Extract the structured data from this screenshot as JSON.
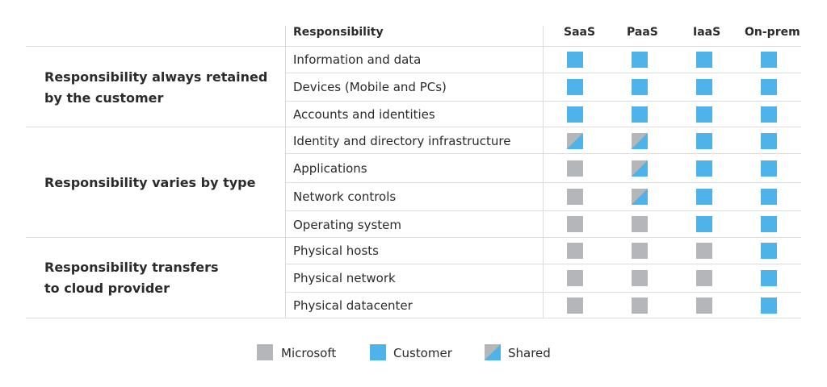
{
  "header": {
    "responsibility": "Responsibility",
    "columns": [
      "SaaS",
      "PaaS",
      "IaaS",
      "On-prem"
    ]
  },
  "groups": [
    {
      "label_lines": [
        "Responsibility always retained",
        "by the customer"
      ]
    },
    {
      "label_lines": [
        "Responsibility varies by type"
      ]
    },
    {
      "label_lines": [
        "Responsibility transfers",
        "to cloud provider"
      ]
    }
  ],
  "rows": [
    {
      "label": "Information and data",
      "cells": [
        "customer",
        "customer",
        "customer",
        "customer"
      ]
    },
    {
      "label": "Devices (Mobile and PCs)",
      "cells": [
        "customer",
        "customer",
        "customer",
        "customer"
      ]
    },
    {
      "label": "Accounts and identities",
      "cells": [
        "customer",
        "customer",
        "customer",
        "customer"
      ]
    },
    {
      "label": "Identity and directory infrastructure",
      "cells": [
        "shared",
        "shared",
        "customer",
        "customer"
      ]
    },
    {
      "label": "Applications",
      "cells": [
        "microsoft",
        "shared",
        "customer",
        "customer"
      ]
    },
    {
      "label": "Network controls",
      "cells": [
        "microsoft",
        "shared",
        "customer",
        "customer"
      ]
    },
    {
      "label": "Operating system",
      "cells": [
        "microsoft",
        "microsoft",
        "customer",
        "customer"
      ]
    },
    {
      "label": "Physical hosts",
      "cells": [
        "microsoft",
        "microsoft",
        "microsoft",
        "customer"
      ]
    },
    {
      "label": "Physical network",
      "cells": [
        "microsoft",
        "microsoft",
        "microsoft",
        "customer"
      ]
    },
    {
      "label": "Physical datacenter",
      "cells": [
        "microsoft",
        "microsoft",
        "microsoft",
        "customer"
      ]
    }
  ],
  "legend": [
    {
      "label": "Microsoft",
      "kind": "microsoft"
    },
    {
      "label": "Customer",
      "kind": "customer"
    },
    {
      "label": "Shared",
      "kind": "shared"
    }
  ],
  "colors": {
    "customer": "#4db3e8",
    "microsoft": "#b4b7b9",
    "gridline": "#dcdcdc"
  }
}
